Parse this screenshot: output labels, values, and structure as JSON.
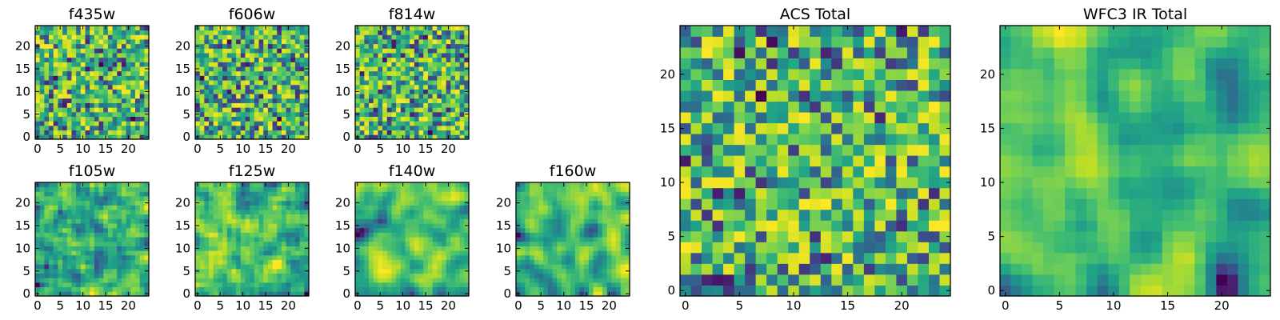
{
  "chart_data": [
    {
      "type": "heatmap",
      "title": "f435w",
      "xlabel": "",
      "ylabel": "",
      "xlim": [
        0,
        25
      ],
      "ylim": [
        0,
        25
      ],
      "xticks": [
        "0",
        "5",
        "10",
        "15",
        "20"
      ],
      "yticks": [
        "0",
        "5",
        "10",
        "15",
        "20"
      ],
      "colormap": "viridis",
      "seed": 11,
      "smooth": 0
    },
    {
      "type": "heatmap",
      "title": "f606w",
      "xlabel": "",
      "ylabel": "",
      "xlim": [
        0,
        25
      ],
      "ylim": [
        0,
        25
      ],
      "xticks": [
        "0",
        "5",
        "10",
        "15",
        "20"
      ],
      "yticks": [
        "0",
        "5",
        "10",
        "15",
        "20"
      ],
      "colormap": "viridis",
      "seed": 23,
      "smooth": 0
    },
    {
      "type": "heatmap",
      "title": "f814w",
      "xlabel": "",
      "ylabel": "",
      "xlim": [
        0,
        25
      ],
      "ylim": [
        0,
        25
      ],
      "xticks": [
        "0",
        "5",
        "10",
        "15",
        "20"
      ],
      "yticks": [
        "0",
        "5",
        "10",
        "15",
        "20"
      ],
      "colormap": "viridis",
      "seed": 37,
      "smooth": 0
    },
    {
      "type": "heatmap",
      "title": "f105w",
      "xlabel": "",
      "ylabel": "",
      "xlim": [
        0,
        25
      ],
      "ylim": [
        0,
        25
      ],
      "xticks": [
        "0",
        "5",
        "10",
        "15",
        "20"
      ],
      "yticks": [
        "0",
        "5",
        "10",
        "15",
        "20"
      ],
      "colormap": "viridis",
      "seed": 41,
      "smooth": 1
    },
    {
      "type": "heatmap",
      "title": "f125w",
      "xlabel": "",
      "ylabel": "",
      "xlim": [
        0,
        25
      ],
      "ylim": [
        0,
        25
      ],
      "xticks": [
        "0",
        "5",
        "10",
        "15",
        "20"
      ],
      "yticks": [
        "0",
        "5",
        "10",
        "15",
        "20"
      ],
      "colormap": "viridis",
      "seed": 53,
      "smooth": 1
    },
    {
      "type": "heatmap",
      "title": "f140w",
      "xlabel": "",
      "ylabel": "",
      "xlim": [
        0,
        25
      ],
      "ylim": [
        0,
        25
      ],
      "xticks": [
        "0",
        "5",
        "10",
        "15",
        "20"
      ],
      "yticks": [
        "0",
        "5",
        "10",
        "15",
        "20"
      ],
      "colormap": "viridis",
      "seed": 67,
      "smooth": 2
    },
    {
      "type": "heatmap",
      "title": "f160w",
      "xlabel": "",
      "ylabel": "",
      "xlim": [
        0,
        25
      ],
      "ylim": [
        0,
        25
      ],
      "xticks": [
        "0",
        "5",
        "10",
        "15",
        "20"
      ],
      "yticks": [
        "0",
        "5",
        "10",
        "15",
        "20"
      ],
      "colormap": "viridis",
      "seed": 79,
      "smooth": 2
    },
    {
      "type": "heatmap",
      "title": "ACS Total",
      "xlabel": "",
      "ylabel": "",
      "xlim": [
        0,
        25
      ],
      "ylim": [
        0,
        25
      ],
      "xticks": [
        "0",
        "5",
        "10",
        "15",
        "20"
      ],
      "yticks": [
        "0",
        "5",
        "10",
        "15",
        "20"
      ],
      "colormap": "viridis",
      "seed": 97,
      "smooth": 0
    },
    {
      "type": "heatmap",
      "title": "WFC3 IR Total",
      "xlabel": "",
      "ylabel": "",
      "xlim": [
        0,
        25
      ],
      "ylim": [
        0,
        25
      ],
      "xticks": [
        "0",
        "5",
        "10",
        "15",
        "20"
      ],
      "yticks": [
        "0",
        "5",
        "10",
        "15",
        "20"
      ],
      "colormap": "viridis",
      "seed": 131,
      "smooth": 2
    }
  ]
}
